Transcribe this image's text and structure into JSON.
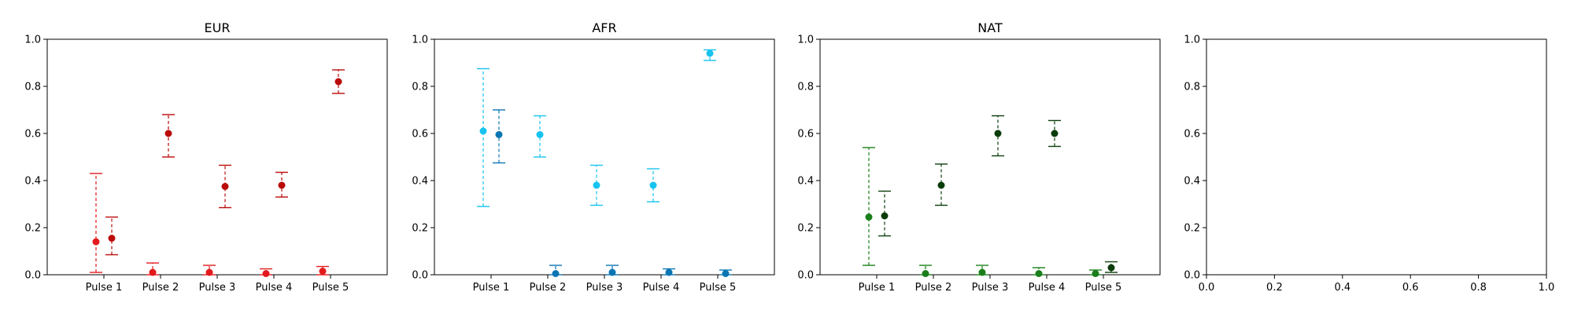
{
  "chart_data": [
    {
      "type": "scatter",
      "title": "EUR",
      "categories": [
        "Pulse 1",
        "Pulse 2",
        "Pulse 3",
        "Pulse 4",
        "Pulse 5"
      ],
      "ylim": [
        0,
        1
      ],
      "yticks": [
        "0.0",
        "0.2",
        "0.4",
        "0.6",
        "0.8",
        "1.0"
      ],
      "series": [
        {
          "color": "#e31a1c",
          "points": [
            {
              "y": 0.14,
              "low": 0.01,
              "high": 0.43
            },
            {
              "y": 0.01,
              "low": 0.0,
              "high": 0.05
            },
            {
              "y": 0.01,
              "low": 0.0,
              "high": 0.04
            },
            {
              "y": 0.005,
              "low": 0.0,
              "high": 0.025
            },
            {
              "y": 0.015,
              "low": 0.0,
              "high": 0.035
            }
          ]
        },
        {
          "color": "#bb0a0a",
          "points": [
            {
              "y": 0.155,
              "low": 0.085,
              "high": 0.245
            },
            {
              "y": 0.6,
              "low": 0.5,
              "high": 0.68
            },
            {
              "y": 0.375,
              "low": 0.285,
              "high": 0.465
            },
            {
              "y": 0.38,
              "low": 0.33,
              "high": 0.435
            },
            {
              "y": 0.82,
              "low": 0.77,
              "high": 0.87
            }
          ]
        }
      ]
    },
    {
      "type": "scatter",
      "title": "AFR",
      "categories": [
        "Pulse 1",
        "Pulse 2",
        "Pulse 3",
        "Pulse 4",
        "Pulse 5"
      ],
      "ylim": [
        0,
        1
      ],
      "yticks": [
        "0.0",
        "0.2",
        "0.4",
        "0.6",
        "0.8",
        "1.0"
      ],
      "series": [
        {
          "color": "#17c3ef",
          "points": [
            {
              "y": 0.61,
              "low": 0.29,
              "high": 0.875
            },
            {
              "y": 0.595,
              "low": 0.5,
              "high": 0.675
            },
            {
              "y": 0.38,
              "low": 0.295,
              "high": 0.465
            },
            {
              "y": 0.38,
              "low": 0.31,
              "high": 0.45
            },
            {
              "y": 0.94,
              "low": 0.91,
              "high": 0.955
            }
          ]
        },
        {
          "color": "#0a75b3",
          "points": [
            {
              "y": 0.595,
              "low": 0.475,
              "high": 0.7
            },
            {
              "y": 0.005,
              "low": 0.0,
              "high": 0.04
            },
            {
              "y": 0.01,
              "low": 0.0,
              "high": 0.04
            },
            {
              "y": 0.01,
              "low": 0.0,
              "high": 0.025
            },
            {
              "y": 0.005,
              "low": 0.0,
              "high": 0.02
            }
          ]
        }
      ]
    },
    {
      "type": "scatter",
      "title": "NAT",
      "categories": [
        "Pulse 1",
        "Pulse 2",
        "Pulse 3",
        "Pulse 4",
        "Pulse 5"
      ],
      "ylim": [
        0,
        1
      ],
      "yticks": [
        "0.0",
        "0.2",
        "0.4",
        "0.6",
        "0.8",
        "1.0"
      ],
      "series": [
        {
          "color": "#1a7f1a",
          "points": [
            {
              "y": 0.245,
              "low": 0.04,
              "high": 0.54
            },
            {
              "y": 0.005,
              "low": 0.0,
              "high": 0.04
            },
            {
              "y": 0.01,
              "low": 0.0,
              "high": 0.04
            },
            {
              "y": 0.005,
              "low": 0.0,
              "high": 0.03
            },
            {
              "y": 0.005,
              "low": 0.0,
              "high": 0.02
            }
          ]
        },
        {
          "color": "#0b3d0b",
          "points": [
            {
              "y": 0.25,
              "low": 0.165,
              "high": 0.355
            },
            {
              "y": 0.38,
              "low": 0.295,
              "high": 0.47
            },
            {
              "y": 0.6,
              "low": 0.505,
              "high": 0.675
            },
            {
              "y": 0.6,
              "low": 0.545,
              "high": 0.655
            },
            {
              "y": 0.03,
              "low": 0.01,
              "high": 0.055
            }
          ]
        }
      ]
    },
    {
      "type": "scatter",
      "title": "",
      "categories": [],
      "xlim": [
        0,
        1
      ],
      "ylim": [
        0,
        1
      ],
      "xticks": [
        "0.0",
        "0.2",
        "0.4",
        "0.6",
        "0.8",
        "1.0"
      ],
      "yticks": [
        "0.0",
        "0.2",
        "0.4",
        "0.6",
        "0.8",
        "1.0"
      ],
      "series": []
    }
  ]
}
